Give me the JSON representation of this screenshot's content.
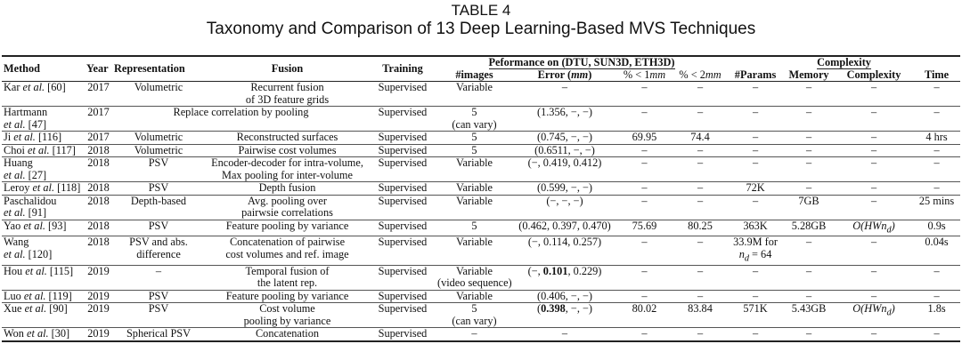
{
  "caption": {
    "label": "TABLE 4",
    "title": "Taxonomy and Comparison of 13 Deep Learning-Based MVS Techniques"
  },
  "header": {
    "method": "Method",
    "year": "Year",
    "representation": "Representation",
    "fusion": "Fusion",
    "training": "Training",
    "performance_group": "Peformance on (DTU, SUN3D, ETH3D)",
    "complexity_group": "Complexity",
    "images": "#images",
    "error": "Error (mm)",
    "lt1": "% < 1mm",
    "lt2": "% < 2mm",
    "params": "#Params",
    "memory": "Memory",
    "complexity": "Complexity",
    "time": "Time"
  },
  "rows": [
    {
      "method": "Kar et al. [60]",
      "year": "2017",
      "rep": "Volumetric",
      "fusion": "Recurrent fusion of 3D feature grids",
      "training": "Supervised",
      "images": "Variable",
      "error": "–",
      "lt1": "–",
      "lt2": "–",
      "params": "–",
      "memory": "–",
      "complexity": "–",
      "time": "–"
    },
    {
      "method": "Hartmann et al. [47]",
      "year": "2017",
      "rep": "",
      "fusion": "Replace correlation by pooling",
      "training": "Supervised",
      "images": "5 (can vary)",
      "error": "(1.356, −, −)",
      "lt1": "–",
      "lt2": "–",
      "params": "–",
      "memory": "–",
      "complexity": "–",
      "time": "–"
    },
    {
      "method": "Ji et al. [116]",
      "year": "2017",
      "rep": "Volumetric",
      "fusion": "Reconstructed surfaces",
      "training": "Supervised",
      "images": "5",
      "error": "(0.745, −, −)",
      "lt1": "69.95",
      "lt2": "74.4",
      "params": "–",
      "memory": "–",
      "complexity": "–",
      "time": "4 hrs"
    },
    {
      "method": "Choi et al. [117]",
      "year": "2018",
      "rep": "Volumetric",
      "fusion": "Pairwise cost volumes",
      "training": "Supervised",
      "images": "5",
      "error": "(0.6511, −, −)",
      "lt1": "–",
      "lt2": "–",
      "params": "–",
      "memory": "–",
      "complexity": "–",
      "time": "–"
    },
    {
      "method": "Huang et al. [27]",
      "year": "2018",
      "rep": "PSV",
      "fusion": "Encoder-decoder for intra-volume, Max pooling for inter-volume",
      "training": "Supervised",
      "images": "Variable",
      "error": "(−, 0.419, 0.412)",
      "lt1": "–",
      "lt2": "–",
      "params": "–",
      "memory": "–",
      "complexity": "–",
      "time": "–"
    },
    {
      "method": "Leroy et al. [118]",
      "year": "2018",
      "rep": "PSV",
      "fusion": "Depth fusion",
      "training": "Supervised",
      "images": "Variable",
      "error": "(0.599, −, −)",
      "lt1": "–",
      "lt2": "–",
      "params": "72K",
      "memory": "–",
      "complexity": "–",
      "time": "–"
    },
    {
      "method": "Paschalidou et al. [91]",
      "year": "2018",
      "rep": "Depth-based",
      "fusion": "Avg. pooling over pairwsie correlations",
      "training": "Supervised",
      "images": "Variable",
      "error": "(−, −, −)",
      "lt1": "–",
      "lt2": "–",
      "params": "–",
      "memory": "7GB",
      "complexity": "–",
      "time": "25 mins"
    },
    {
      "method": "Yao et al. [93]",
      "year": "2018",
      "rep": "PSV",
      "fusion": "Feature pooling by variance",
      "training": "Supervised",
      "images": "5",
      "error": "(0.462, 0.397, 0.470)",
      "lt1": "75.69",
      "lt2": "80.25",
      "params": "363K",
      "memory": "5.28GB",
      "complexity": "O(HWnd)",
      "time": "0.9s"
    },
    {
      "method": "Wang et al. [120]",
      "year": "2018",
      "rep": "PSV and abs. difference",
      "fusion": "Concatenation of pairwise cost volumes and ref. image",
      "training": "Supervised",
      "images": "Variable",
      "error": "(−, 0.114, 0.257)",
      "lt1": "–",
      "lt2": "–",
      "params": "33.9M for nd = 64",
      "memory": "–",
      "complexity": "–",
      "time": "0.04s"
    },
    {
      "method": "Hou et al. [115]",
      "year": "2019",
      "rep": "–",
      "fusion": "Temporal fusion of the latent rep.",
      "training": "Supervised",
      "images": "Variable (video sequence)",
      "error": "(−, 0.101, 0.229)",
      "lt1": "–",
      "lt2": "–",
      "params": "–",
      "memory": "–",
      "complexity": "–",
      "time": "–"
    },
    {
      "method": "Luo et al. [119]",
      "year": "2019",
      "rep": "PSV",
      "fusion": "Feature pooling by variance",
      "training": "Supervised",
      "images": "Variable",
      "error": "(0.406, −, −)",
      "lt1": "–",
      "lt2": "–",
      "params": "–",
      "memory": "–",
      "complexity": "–",
      "time": "–"
    },
    {
      "method": "Xue et al. [90]",
      "year": "2019",
      "rep": "PSV",
      "fusion": "Cost volume pooling by variance",
      "training": "Supervised",
      "images": "5 (can vary)",
      "error": "(0.398, −, −)",
      "lt1": "80.02",
      "lt2": "83.84",
      "params": "571K",
      "memory": "5.43GB",
      "complexity": "O(HWnd)",
      "time": "1.8s"
    },
    {
      "method": "Won et al. [30]",
      "year": "2019",
      "rep": "Spherical PSV",
      "fusion": "Concatenation",
      "training": "Supervised",
      "images": "–",
      "error": "–",
      "lt1": "–",
      "lt2": "–",
      "params": "–",
      "memory": "–",
      "complexity": "–",
      "time": "–"
    }
  ],
  "display": {
    "r0": {
      "method_a": "Kar ",
      "method_i": "et al.",
      "method_b": " [60]",
      "fusion_1": "Recurrent fusion",
      "fusion_2": "of 3D feature grids"
    },
    "r1": {
      "method_1": "Hartmann",
      "method_i": "et al.",
      "method_b": " [47]",
      "images_1": "5",
      "images_2": "(can vary)",
      "err": "(1.356, −, −)"
    },
    "r2": {
      "method_a": "Ji ",
      "method_i": "et al.",
      "method_b": " [116]"
    },
    "r3": {
      "method_a": "Choi ",
      "method_i": "et al.",
      "method_b": " [117]"
    },
    "r4": {
      "method_1": "Huang",
      "method_i": "et al.",
      "method_b": " [27]",
      "fusion_1": "Encoder-decoder for intra-volume,",
      "fusion_2": "Max pooling for inter-volume"
    },
    "r5": {
      "method_a": "Leroy ",
      "method_i": "et al.",
      "method_b": " [118]"
    },
    "r6": {
      "method_1": "Paschalidou",
      "method_i": "et al.",
      "method_b": " [91]",
      "fusion_1": "Avg. pooling over",
      "fusion_2": "pairwsie correlations"
    },
    "r7": {
      "method_a": "Yao ",
      "method_i": "et al.",
      "method_b": " [93]"
    },
    "r8": {
      "method_1": "Wang",
      "method_i": "et al.",
      "method_b": " [120]",
      "rep_1": "PSV and abs.",
      "rep_2": "difference",
      "fusion_1": "Concatenation of pairwise",
      "fusion_2": "cost volumes and ref. image",
      "params_1": "33.9M for",
      "params_2a": "n",
      "params_2s": "d",
      "params_2b": " = 64"
    },
    "r9": {
      "method_a": "Hou ",
      "method_i": "et al.",
      "method_b": " [115]",
      "fusion_1": "Temporal fusion of",
      "fusion_2": "the latent rep.",
      "images_1": "Variable",
      "images_2": "(video sequence)",
      "err_a": "(−, ",
      "err_bold": "0.101",
      "err_b": ", 0.229)"
    },
    "r10": {
      "method_a": "Luo ",
      "method_i": "et al.",
      "method_b": " [119]"
    },
    "r11": {
      "method_a": "Xue ",
      "method_i": "et al.",
      "method_b": " [90]",
      "fusion_1": "Cost volume",
      "fusion_2": "pooling by variance",
      "images_1": "5",
      "images_2": "(can vary)",
      "err_a": "(",
      "err_bold": "0.398",
      "err_b": ", −, −)",
      "cx_a": "O(HWn",
      "cx_s": "d",
      "cx_b": ")"
    },
    "r12": {
      "method_a": "Won ",
      "method_i": "et al.",
      "method_b": " [30]"
    },
    "r7x": {
      "cx_a": "O(HWn",
      "cx_s": "d",
      "cx_b": ")"
    }
  }
}
